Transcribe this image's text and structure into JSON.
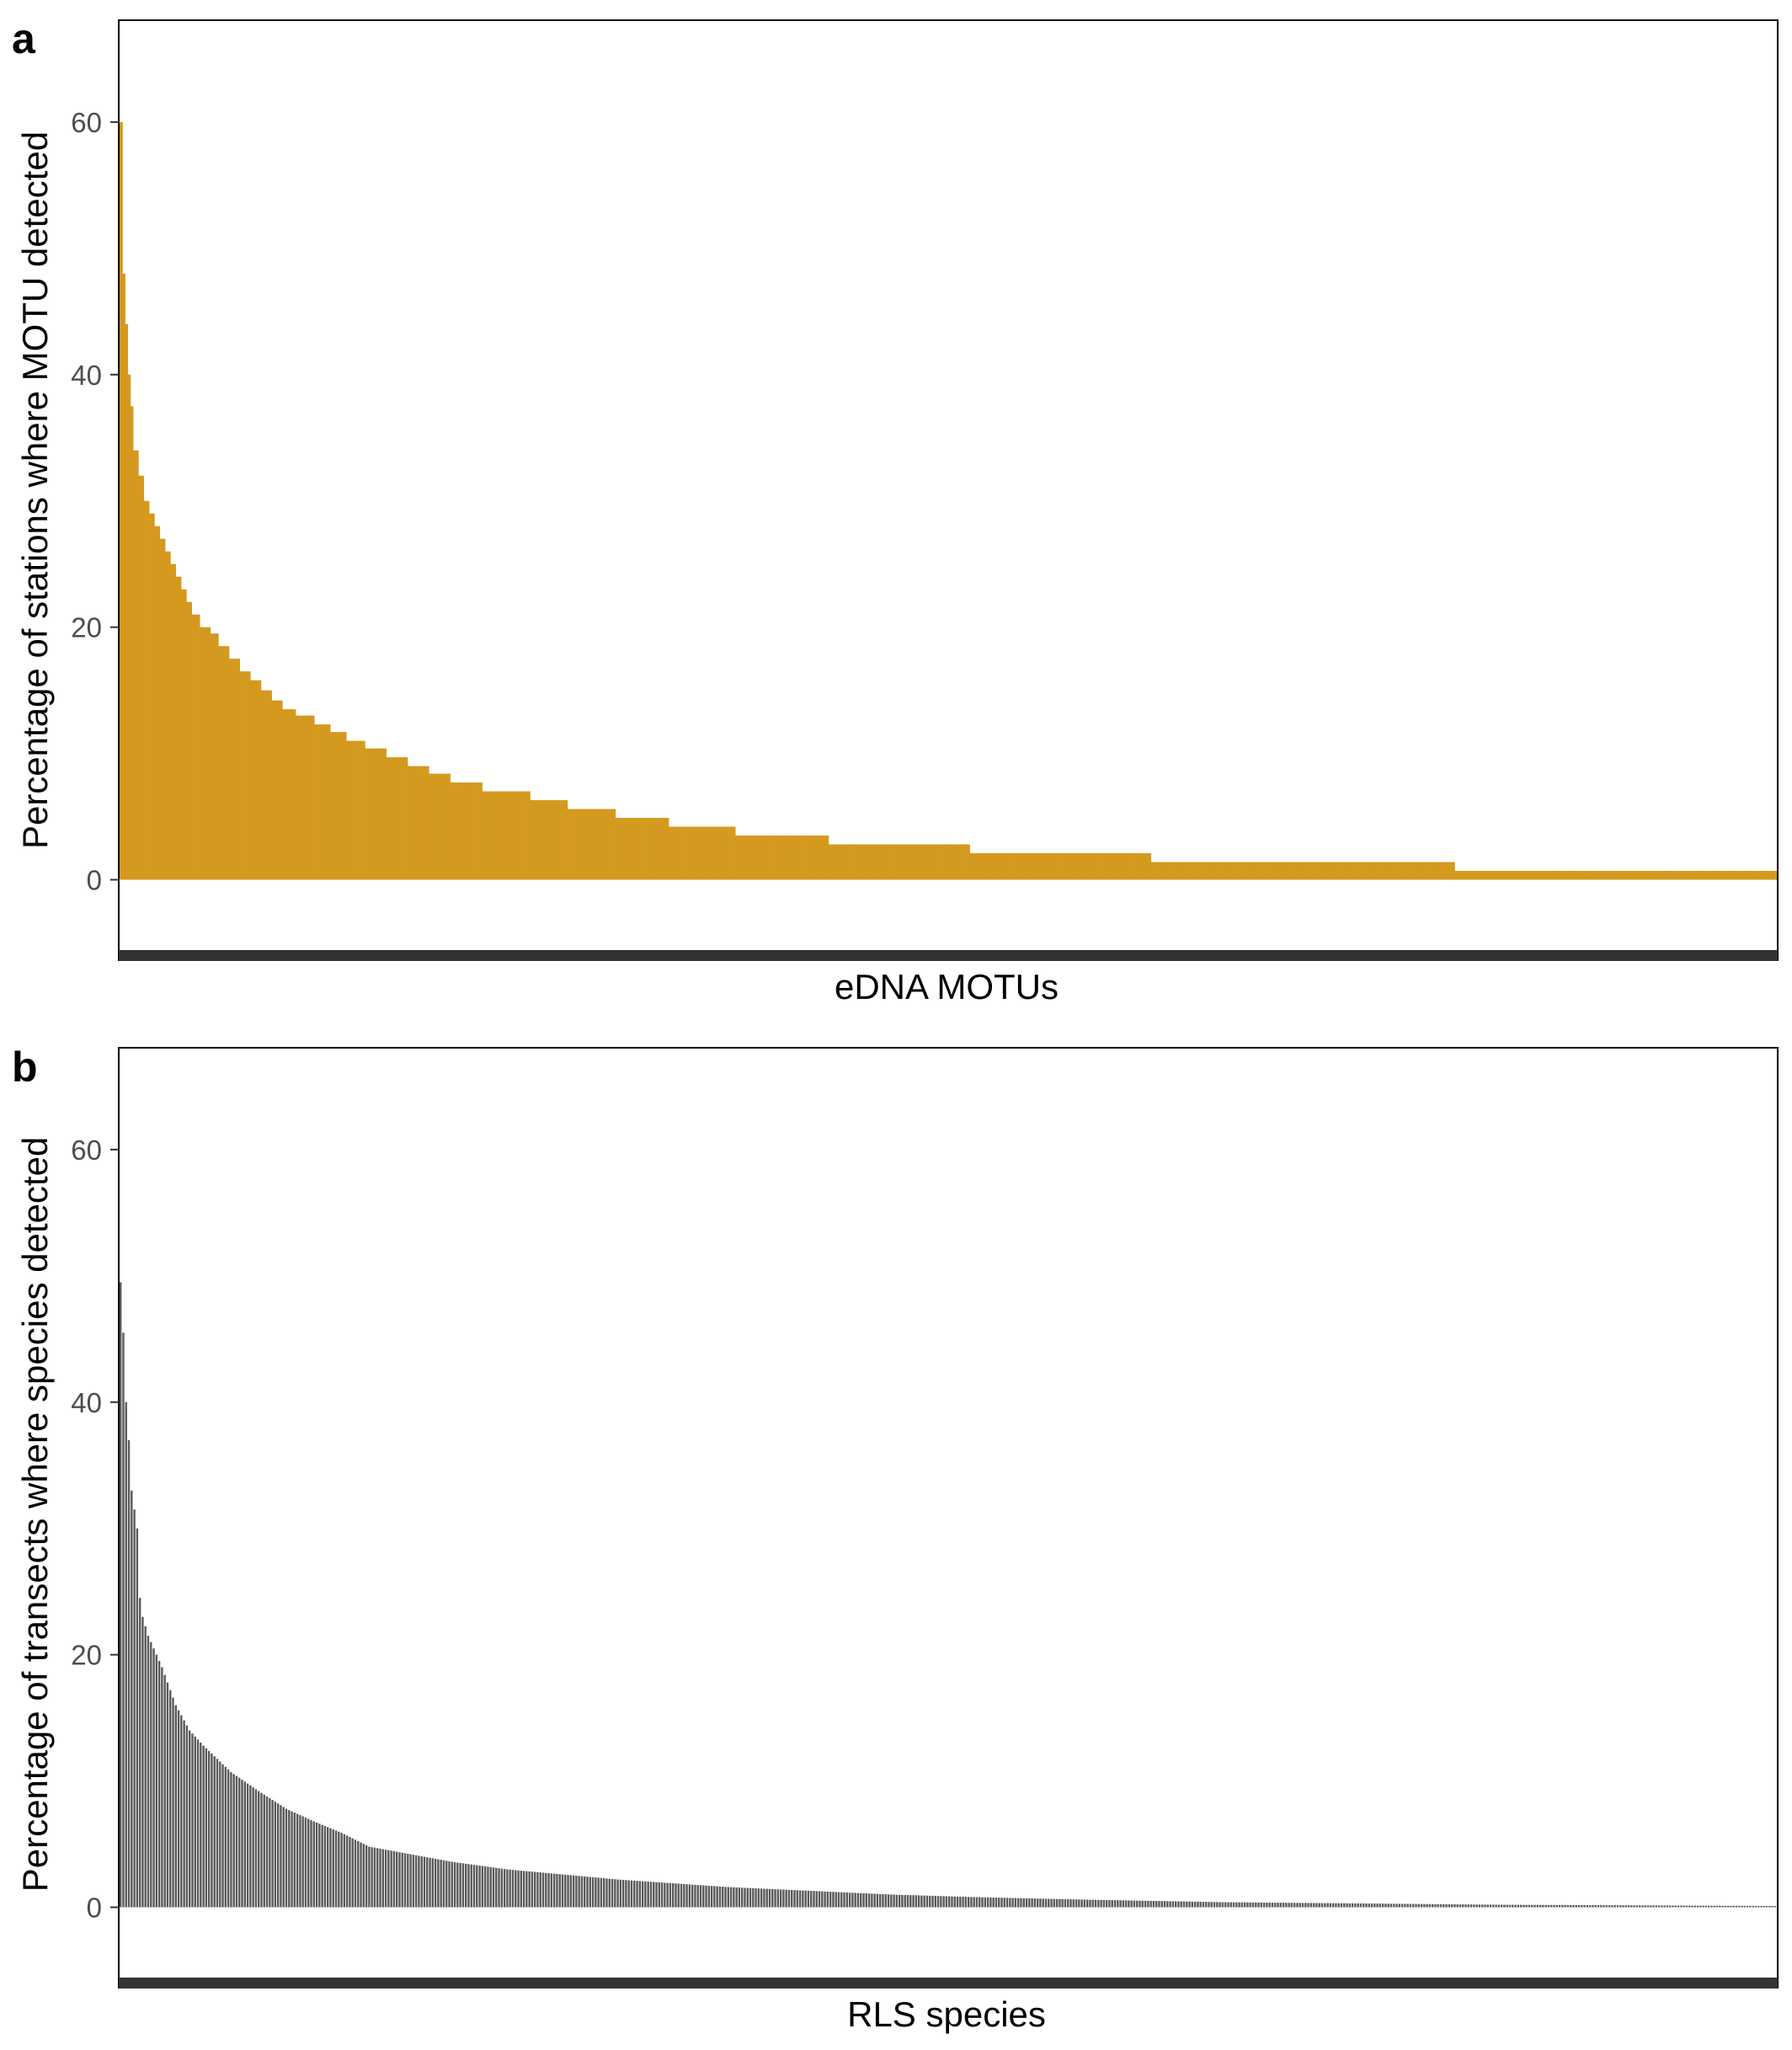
{
  "chart_data": [
    {
      "type": "bar",
      "panel_label": "a",
      "title": "",
      "xlabel": "eDNA MOTUs",
      "ylabel": "Percentage of stations where MOTU detected",
      "ylim": [
        -5.5,
        68
      ],
      "yticks": [
        0,
        20,
        40,
        60
      ],
      "grid": false,
      "colors": {
        "bar": "#D4991F"
      },
      "segments": [
        {
          "y": 60.0,
          "n": 1
        },
        {
          "y": 48.0,
          "n": 1
        },
        {
          "y": 44.0,
          "n": 1
        },
        {
          "y": 40.0,
          "n": 1
        },
        {
          "y": 37.5,
          "n": 1
        },
        {
          "y": 34.0,
          "n": 2
        },
        {
          "y": 32.0,
          "n": 2
        },
        {
          "y": 30.0,
          "n": 2
        },
        {
          "y": 29.0,
          "n": 2
        },
        {
          "y": 28.0,
          "n": 2
        },
        {
          "y": 27.0,
          "n": 2
        },
        {
          "y": 26.0,
          "n": 2
        },
        {
          "y": 25.0,
          "n": 2
        },
        {
          "y": 24.0,
          "n": 2
        },
        {
          "y": 23.0,
          "n": 2
        },
        {
          "y": 22.0,
          "n": 2
        },
        {
          "y": 21.0,
          "n": 3
        },
        {
          "y": 20.0,
          "n": 4
        },
        {
          "y": 19.5,
          "n": 3
        },
        {
          "y": 18.5,
          "n": 4
        },
        {
          "y": 17.5,
          "n": 4
        },
        {
          "y": 16.5,
          "n": 4
        },
        {
          "y": 15.8,
          "n": 4
        },
        {
          "y": 15.0,
          "n": 4
        },
        {
          "y": 14.2,
          "n": 4
        },
        {
          "y": 13.5,
          "n": 5
        },
        {
          "y": 13.0,
          "n": 7
        },
        {
          "y": 12.3,
          "n": 6
        },
        {
          "y": 11.7,
          "n": 6
        },
        {
          "y": 11.0,
          "n": 7
        },
        {
          "y": 10.4,
          "n": 8
        },
        {
          "y": 9.7,
          "n": 8
        },
        {
          "y": 9.0,
          "n": 8
        },
        {
          "y": 8.4,
          "n": 8
        },
        {
          "y": 7.7,
          "n": 12
        },
        {
          "y": 7.0,
          "n": 18
        },
        {
          "y": 6.3,
          "n": 14
        },
        {
          "y": 5.6,
          "n": 18
        },
        {
          "y": 4.9,
          "n": 20
        },
        {
          "y": 4.2,
          "n": 25
        },
        {
          "y": 3.5,
          "n": 35
        },
        {
          "y": 2.8,
          "n": 53
        },
        {
          "y": 2.1,
          "n": 68
        },
        {
          "y": 1.4,
          "n": 114
        },
        {
          "y": 0.7,
          "n": 121
        }
      ]
    },
    {
      "type": "bar",
      "panel_label": "b",
      "title": "",
      "xlabel": "RLS species",
      "ylabel": "Percentage of transects where species detected",
      "ylim": [
        -5.5,
        68
      ],
      "yticks": [
        0,
        20,
        40,
        60
      ],
      "grid": false,
      "colors": {
        "bar": "#595959"
      },
      "n_bars": 600,
      "curve": [
        {
          "rank": 0,
          "y": 49.5
        },
        {
          "rank": 1,
          "y": 45.5
        },
        {
          "rank": 2,
          "y": 40.0
        },
        {
          "rank": 3,
          "y": 37.0
        },
        {
          "rank": 4,
          "y": 33.0
        },
        {
          "rank": 6,
          "y": 30.0
        },
        {
          "rank": 7,
          "y": 24.5
        },
        {
          "rank": 8,
          "y": 23.0
        },
        {
          "rank": 10,
          "y": 21.5
        },
        {
          "rank": 15,
          "y": 19.0
        },
        {
          "rank": 20,
          "y": 16.0
        },
        {
          "rank": 25,
          "y": 14.0
        },
        {
          "rank": 30,
          "y": 12.8
        },
        {
          "rank": 40,
          "y": 10.7
        },
        {
          "rank": 50,
          "y": 9.2
        },
        {
          "rank": 60,
          "y": 7.8
        },
        {
          "rank": 70,
          "y": 6.8
        },
        {
          "rank": 80,
          "y": 5.9
        },
        {
          "rank": 90,
          "y": 4.8
        },
        {
          "rank": 100,
          "y": 4.4
        },
        {
          "rank": 120,
          "y": 3.6
        },
        {
          "rank": 140,
          "y": 3.0
        },
        {
          "rank": 160,
          "y": 2.6
        },
        {
          "rank": 180,
          "y": 2.2
        },
        {
          "rank": 200,
          "y": 1.9
        },
        {
          "rank": 220,
          "y": 1.6
        },
        {
          "rank": 250,
          "y": 1.3
        },
        {
          "rank": 280,
          "y": 1.0
        },
        {
          "rank": 310,
          "y": 0.8
        },
        {
          "rank": 350,
          "y": 0.6
        },
        {
          "rank": 400,
          "y": 0.4
        },
        {
          "rank": 450,
          "y": 0.3
        },
        {
          "rank": 500,
          "y": 0.2
        },
        {
          "rank": 550,
          "y": 0.15
        },
        {
          "rank": 599,
          "y": 0.1
        }
      ]
    }
  ]
}
